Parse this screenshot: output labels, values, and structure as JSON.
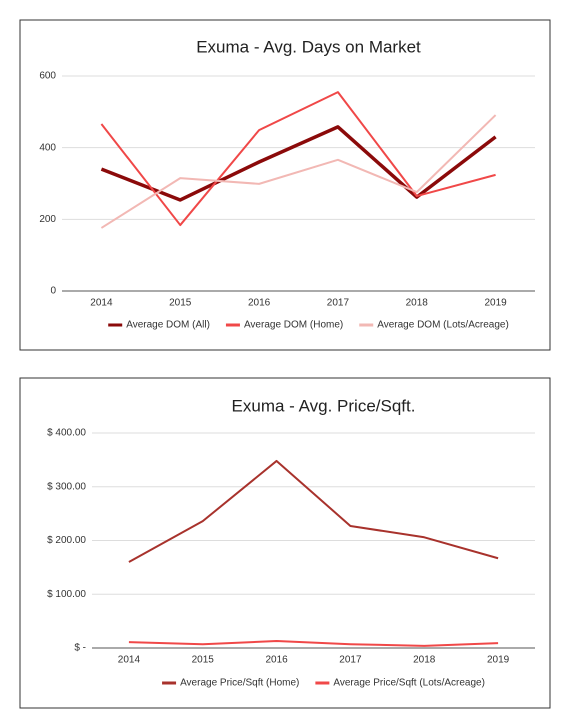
{
  "chart_data": [
    {
      "type": "line",
      "title": "Exuma - Avg. Days on Market",
      "categories": [
        "2014",
        "2015",
        "2016",
        "2017",
        "2018",
        "2019"
      ],
      "series": [
        {
          "name": "Average DOM (All)",
          "color": "#8b0a0a",
          "width": 3.5,
          "values": [
            340,
            254,
            360,
            458,
            262,
            430
          ]
        },
        {
          "name": "Average DOM (Home)",
          "color": "#f04848",
          "width": 2,
          "values": [
            466,
            184,
            449,
            555,
            265,
            324
          ]
        },
        {
          "name": "Average DOM (Lots/Acreage)",
          "color": "#f2b8b4",
          "width": 2,
          "values": [
            176,
            315,
            299,
            366,
            276,
            491
          ]
        }
      ],
      "ylim": [
        0,
        600
      ],
      "yticks": [
        0,
        200,
        400,
        600
      ],
      "grid": true,
      "legend": "bottom"
    },
    {
      "type": "line",
      "title": "Exuma - Avg. Price/Sqft.",
      "categories": [
        "2014",
        "2015",
        "2016",
        "2017",
        "2018",
        "2019"
      ],
      "series": [
        {
          "name": "Average Price/Sqft (Home)",
          "color": "#a8322c",
          "width": 2,
          "values": [
            160,
            236,
            348,
            227,
            206,
            167
          ]
        },
        {
          "name": "Average Price/Sqft (Lots/Acreage)",
          "color": "#f04848",
          "width": 2,
          "values": [
            11,
            7,
            13,
            7,
            4,
            9
          ]
        }
      ],
      "ylim": [
        0,
        400
      ],
      "yticks": [
        {
          "value": 0,
          "label": "$ -"
        },
        {
          "value": 100,
          "label": "$ 100.00"
        },
        {
          "value": 200,
          "label": "$ 200.00"
        },
        {
          "value": 300,
          "label": "$ 300.00"
        },
        {
          "value": 400,
          "label": "$ 400.00"
        }
      ],
      "grid": true,
      "legend": "bottom"
    }
  ]
}
